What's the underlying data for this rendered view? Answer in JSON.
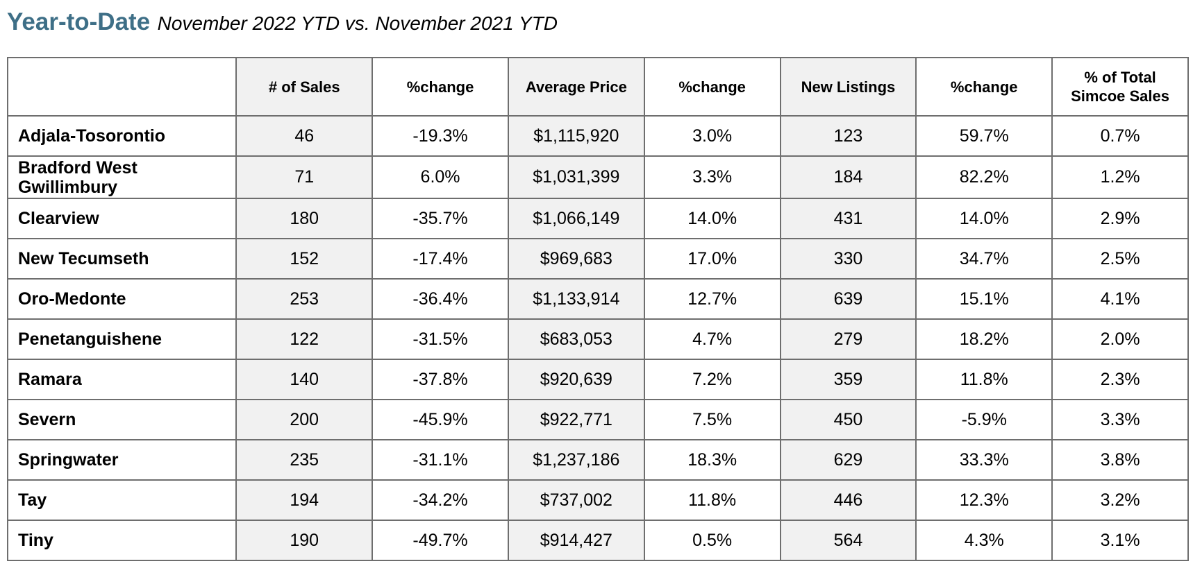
{
  "heading": {
    "title": "Year-to-Date",
    "subtitle": "November 2022 YTD vs. November 2021 YTD"
  },
  "columns": [
    "",
    "# of Sales",
    "%change",
    "Average Price",
    "%change",
    "New Listings",
    "%change",
    "% of Total Simcoe Sales"
  ],
  "column_header_lines": {
    "last_line1": "% of Total",
    "last_line2": "Simcoe Sales"
  },
  "rows": [
    {
      "area": "Adjala-Tosorontio",
      "sales": "46",
      "sales_change": "-19.3%",
      "avg_price": "$1,115,920",
      "price_change": "3.0%",
      "new_listings": "123",
      "listings_change": "59.7%",
      "pct_total": "0.7%"
    },
    {
      "area_line1": "Bradford West",
      "area_line2": "Gwillimbury",
      "area": "Bradford West Gwillimbury",
      "sales": "71",
      "sales_change": "6.0%",
      "avg_price": "$1,031,399",
      "price_change": "3.3%",
      "new_listings": "184",
      "listings_change": "82.2%",
      "pct_total": "1.2%"
    },
    {
      "area": "Clearview",
      "sales": "180",
      "sales_change": "-35.7%",
      "avg_price": "$1,066,149",
      "price_change": "14.0%",
      "new_listings": "431",
      "listings_change": "14.0%",
      "pct_total": "2.9%"
    },
    {
      "area": "New Tecumseth",
      "sales": "152",
      "sales_change": "-17.4%",
      "avg_price": "$969,683",
      "price_change": "17.0%",
      "new_listings": "330",
      "listings_change": "34.7%",
      "pct_total": "2.5%"
    },
    {
      "area": "Oro-Medonte",
      "sales": "253",
      "sales_change": "-36.4%",
      "avg_price": "$1,133,914",
      "price_change": "12.7%",
      "new_listings": "639",
      "listings_change": "15.1%",
      "pct_total": "4.1%"
    },
    {
      "area": "Penetanguishene",
      "sales": "122",
      "sales_change": "-31.5%",
      "avg_price": "$683,053",
      "price_change": "4.7%",
      "new_listings": "279",
      "listings_change": "18.2%",
      "pct_total": "2.0%"
    },
    {
      "area": "Ramara",
      "sales": "140",
      "sales_change": "-37.8%",
      "avg_price": "$920,639",
      "price_change": "7.2%",
      "new_listings": "359",
      "listings_change": "11.8%",
      "pct_total": "2.3%"
    },
    {
      "area": "Severn",
      "sales": "200",
      "sales_change": "-45.9%",
      "avg_price": "$922,771",
      "price_change": "7.5%",
      "new_listings": "450",
      "listings_change": "-5.9%",
      "pct_total": "3.3%"
    },
    {
      "area": "Springwater",
      "sales": "235",
      "sales_change": "-31.1%",
      "avg_price": "$1,237,186",
      "price_change": "18.3%",
      "new_listings": "629",
      "listings_change": "33.3%",
      "pct_total": "3.8%"
    },
    {
      "area": "Tay",
      "sales": "194",
      "sales_change": "-34.2%",
      "avg_price": "$737,002",
      "price_change": "11.8%",
      "new_listings": "446",
      "listings_change": "12.3%",
      "pct_total": "3.2%"
    },
    {
      "area": "Tiny",
      "sales": "190",
      "sales_change": "-49.7%",
      "avg_price": "$914,427",
      "price_change": "0.5%",
      "new_listings": "564",
      "listings_change": "4.3%",
      "pct_total": "3.1%"
    }
  ],
  "colors": {
    "title": "#3e6f87",
    "shaded_column": "#f1f1f1",
    "border": "#6e6e6e"
  }
}
